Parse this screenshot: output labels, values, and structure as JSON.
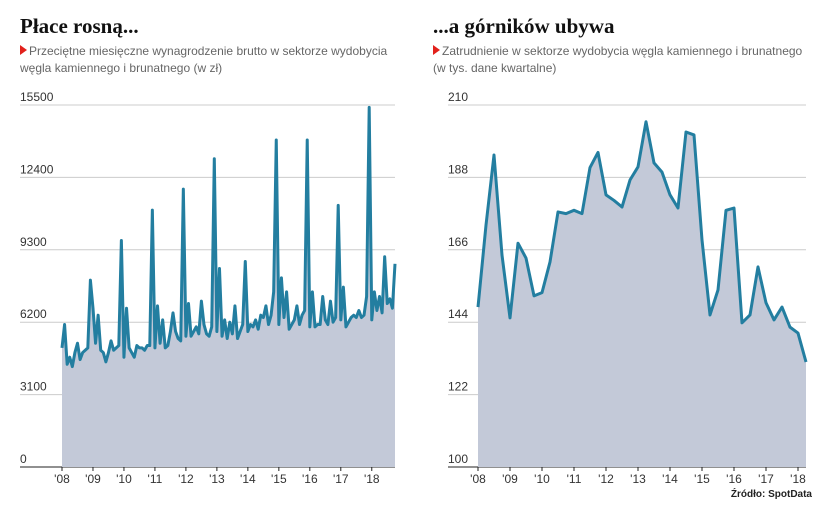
{
  "chart_data": [
    {
      "type": "area",
      "title": "Płace rosną...",
      "subtitle": "Przeciętne miesięczne wynagrodzenie brutto w sektorze wydobycia węgla kamiennego i brunatnego (w zł)",
      "categories": [
        "'08",
        null,
        null,
        null,
        null,
        null,
        null,
        null,
        null,
        null,
        null,
        null,
        "'09",
        null,
        null,
        null,
        null,
        null,
        null,
        null,
        null,
        null,
        null,
        null,
        "'10",
        null,
        null,
        null,
        null,
        null,
        null,
        null,
        null,
        null,
        null,
        null,
        "'11",
        null,
        null,
        null,
        null,
        null,
        null,
        null,
        null,
        null,
        null,
        null,
        "'12",
        null,
        null,
        null,
        null,
        null,
        null,
        null,
        null,
        null,
        null,
        null,
        "'13",
        null,
        null,
        null,
        null,
        null,
        null,
        null,
        null,
        null,
        null,
        null,
        "'14",
        null,
        null,
        null,
        null,
        null,
        null,
        null,
        null,
        null,
        null,
        null,
        "'15",
        null,
        null,
        null,
        null,
        null,
        null,
        null,
        null,
        null,
        null,
        null,
        "'16",
        null,
        null,
        null,
        null,
        null,
        null,
        null,
        null,
        null,
        null,
        null,
        "'17",
        null,
        null,
        null,
        null,
        null,
        null,
        null,
        null,
        null,
        null,
        null,
        "'18",
        null,
        null,
        null,
        null,
        null,
        null,
        null,
        null,
        null
      ],
      "values": [
        5100,
        6100,
        4400,
        4700,
        4300,
        4900,
        5300,
        4600,
        4900,
        5000,
        5100,
        8000,
        6800,
        5300,
        6500,
        5000,
        4900,
        4500,
        4900,
        5400,
        5000,
        5100,
        5200,
        9700,
        4700,
        6800,
        5100,
        4900,
        4700,
        5200,
        5100,
        5100,
        5000,
        5200,
        5200,
        11000,
        5100,
        6900,
        5300,
        6300,
        5100,
        5200,
        5800,
        6600,
        5800,
        5500,
        5400,
        11900,
        5600,
        7000,
        5600,
        5800,
        6000,
        5700,
        7100,
        6100,
        5700,
        5600,
        6000,
        13200,
        5800,
        8500,
        5600,
        6300,
        5500,
        6200,
        5700,
        6900,
        5500,
        5800,
        6100,
        8800,
        5800,
        6100,
        6000,
        6300,
        5900,
        6500,
        6400,
        6900,
        6100,
        6500,
        7500,
        14000,
        6100,
        8100,
        6400,
        7500,
        5900,
        6100,
        6300,
        6900,
        6100,
        6500,
        6700,
        14000,
        6000,
        7500,
        6000,
        6100,
        6100,
        7300,
        6300,
        6100,
        7100,
        6200,
        6400,
        11200,
        6300,
        7700,
        6000,
        6200,
        6400,
        6500,
        6400,
        6700,
        6400,
        6500,
        7300,
        15400,
        6300,
        7500,
        6700,
        7300,
        6600,
        9000,
        7000,
        7200,
        6800,
        8700
      ],
      "color": "#237ea0",
      "fill": "#c3c9d8",
      "ylim": [
        0,
        15500
      ],
      "yticks": [
        0,
        3100,
        6200,
        9300,
        12400,
        15500
      ],
      "grid": true
    },
    {
      "type": "area",
      "title": "...a górników ubywa",
      "subtitle": "Zatrudnienie w sektorze wydobycia węgla kamiennego i brunatnego (w tys. dane kwartalne)",
      "categories": [
        "'08",
        null,
        null,
        null,
        "'09",
        null,
        null,
        null,
        "'10",
        null,
        null,
        null,
        "'11",
        null,
        null,
        null,
        "'12",
        null,
        null,
        null,
        "'13",
        null,
        null,
        null,
        "'14",
        null,
        null,
        null,
        "'15",
        null,
        null,
        null,
        "'16",
        null,
        null,
        null,
        "'17",
        null,
        null,
        null,
        "'18",
        null
      ],
      "values": [
        148.6,
        173.5,
        194.8,
        164.4,
        145.3,
        168,
        163.5,
        152,
        153,
        162.3,
        177.5,
        177,
        178,
        177,
        191,
        195.6,
        182.7,
        181,
        179,
        187.2,
        191.2,
        204.9,
        192.4,
        189.6,
        182.7,
        178.7,
        201.8,
        200.9,
        169,
        146.2,
        153.8,
        178,
        178.7,
        143.8,
        146.2,
        160.8,
        149.9,
        144.7,
        148.6,
        142.5,
        140.7,
        131.9
      ],
      "color": "#237ea0",
      "fill": "#c3c9d8",
      "ylim": [
        100,
        210
      ],
      "yticks": [
        100,
        122,
        144,
        166,
        188,
        210
      ],
      "grid": true
    }
  ],
  "source": "Źródło: SpotData"
}
